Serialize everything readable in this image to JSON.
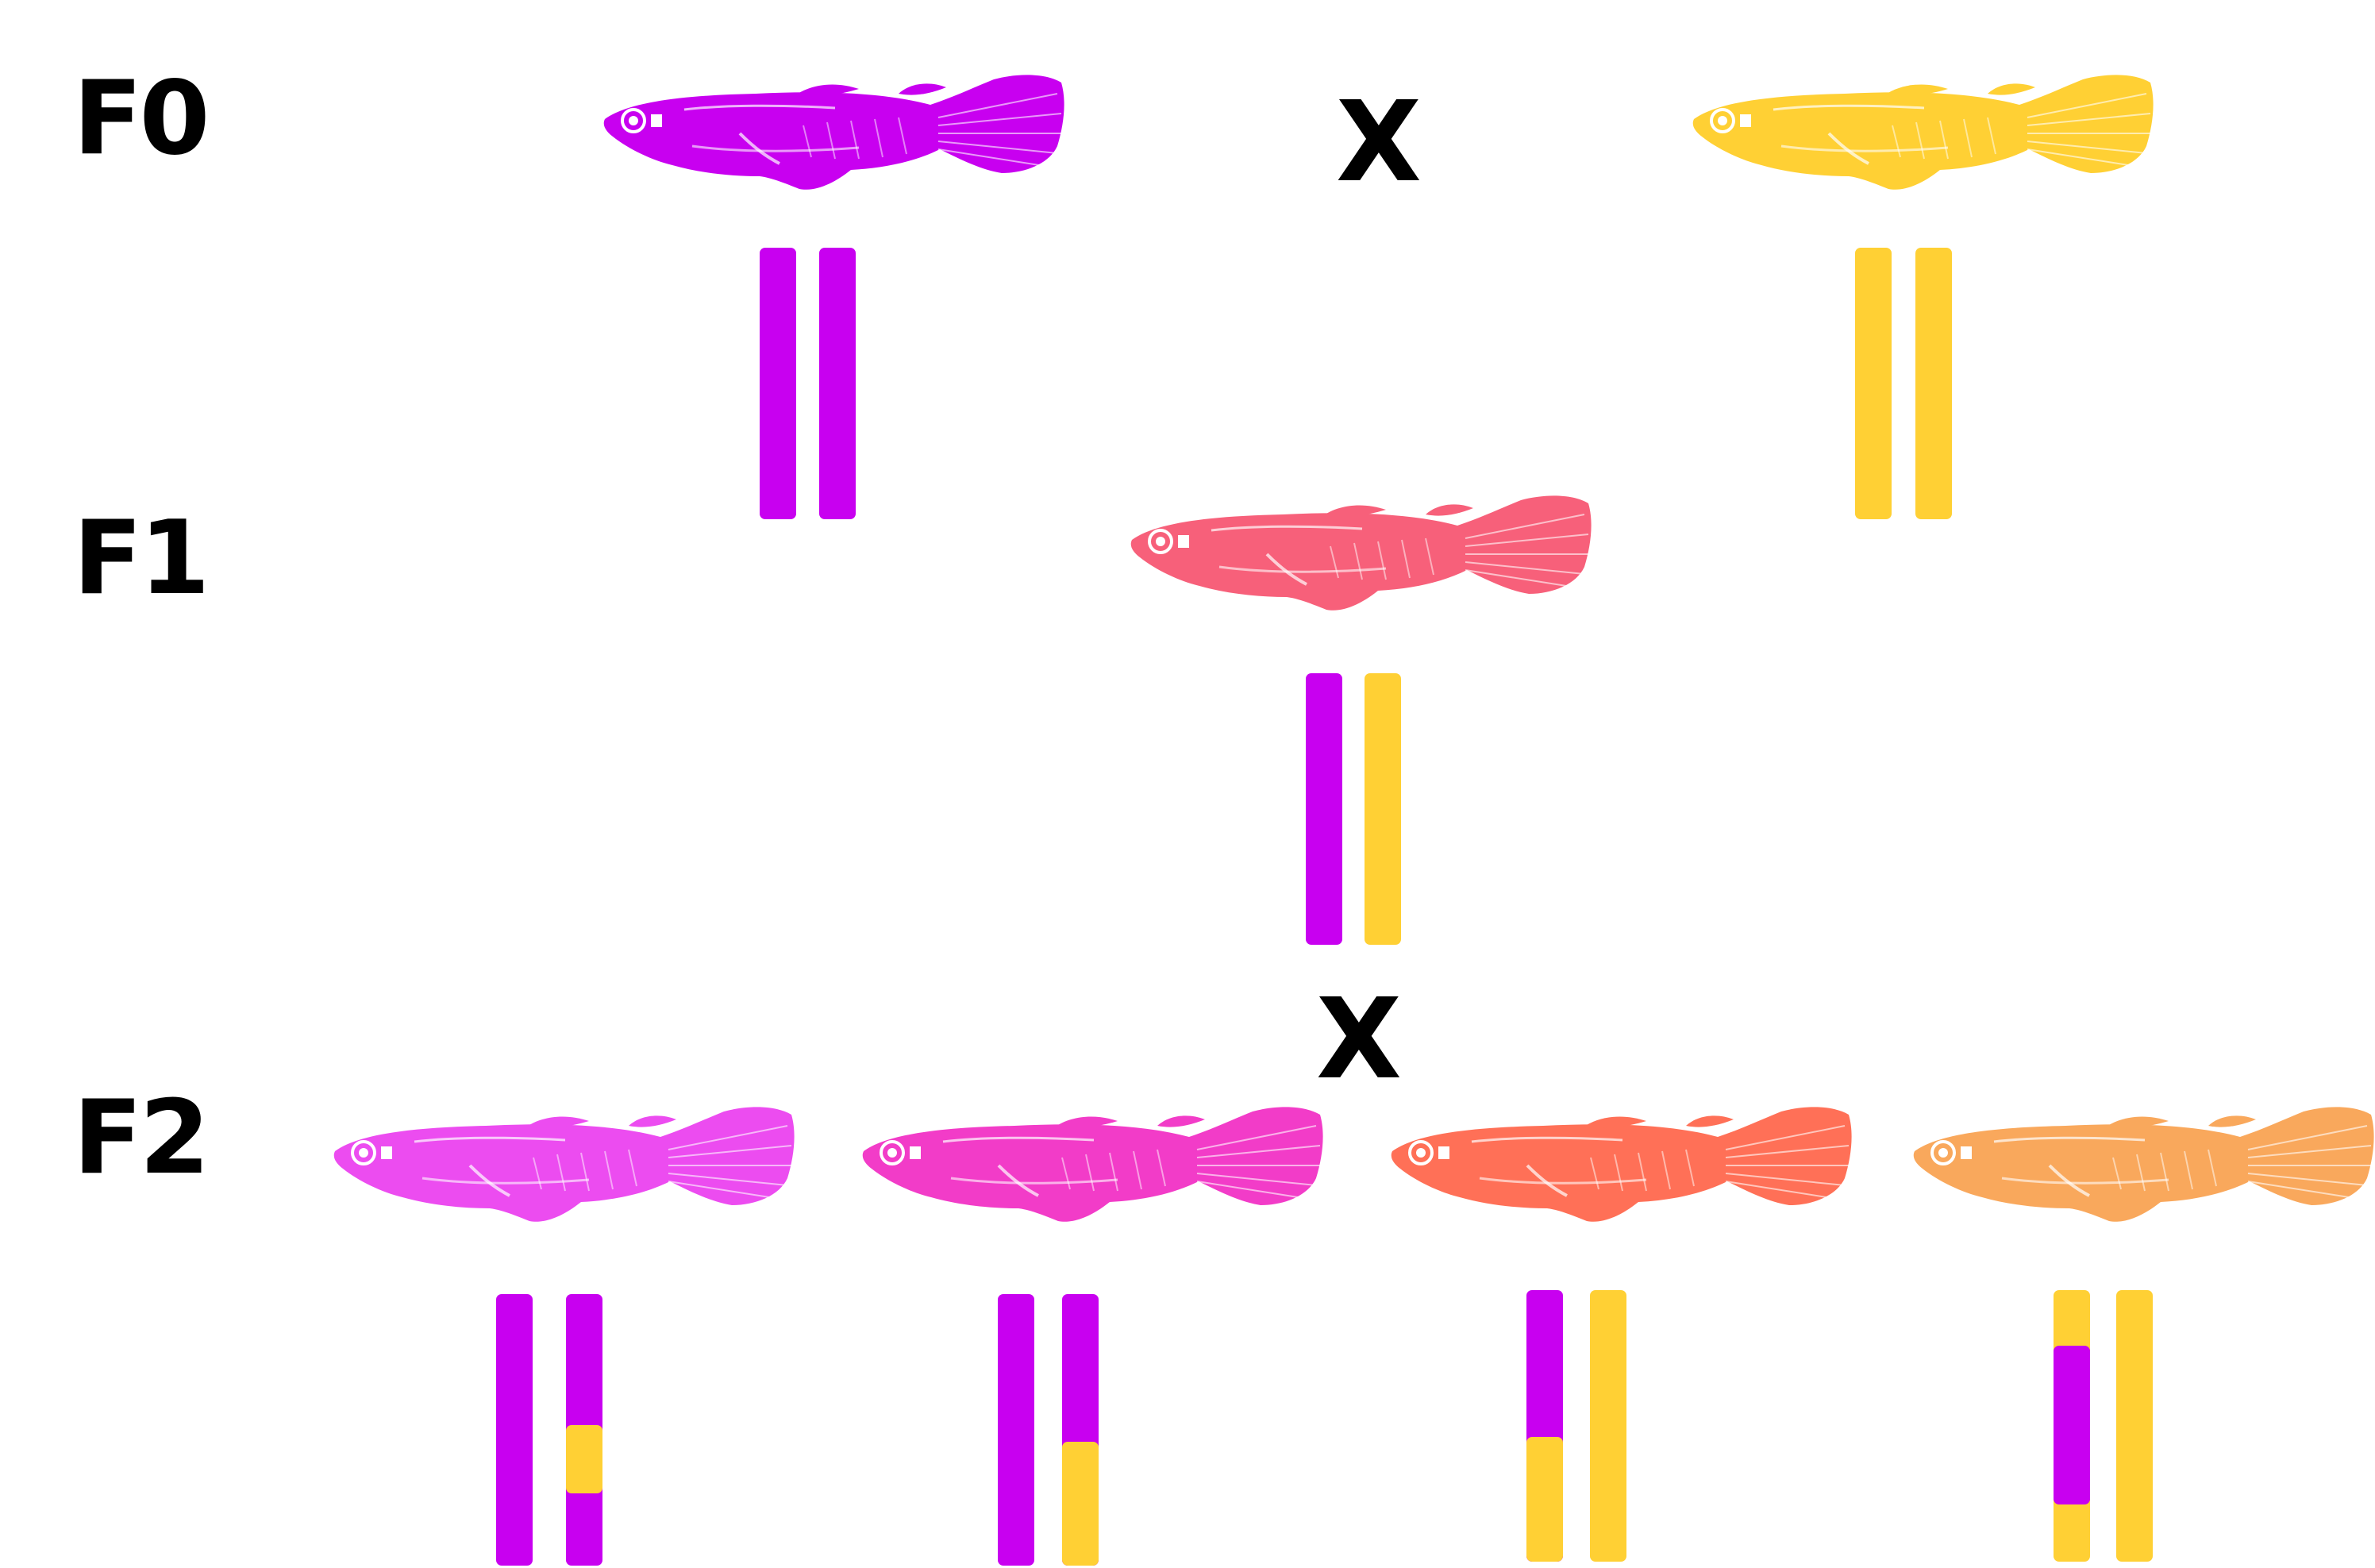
{
  "colors": {
    "purple": "#c800f0",
    "yellow": "#ffd034",
    "f1_fish": "#f7607a",
    "f2_fish_1": "#ec4cf0",
    "f2_fish_2": "#f23cc8",
    "f2_fish_3": "#ff7057",
    "f2_fish_4": "#f9a85c"
  },
  "generations": {
    "f0": "F0",
    "f1": "F1",
    "f2": "F2"
  },
  "cross_symbol": "X",
  "icons": {
    "fish": "medaka-fish-icon"
  }
}
